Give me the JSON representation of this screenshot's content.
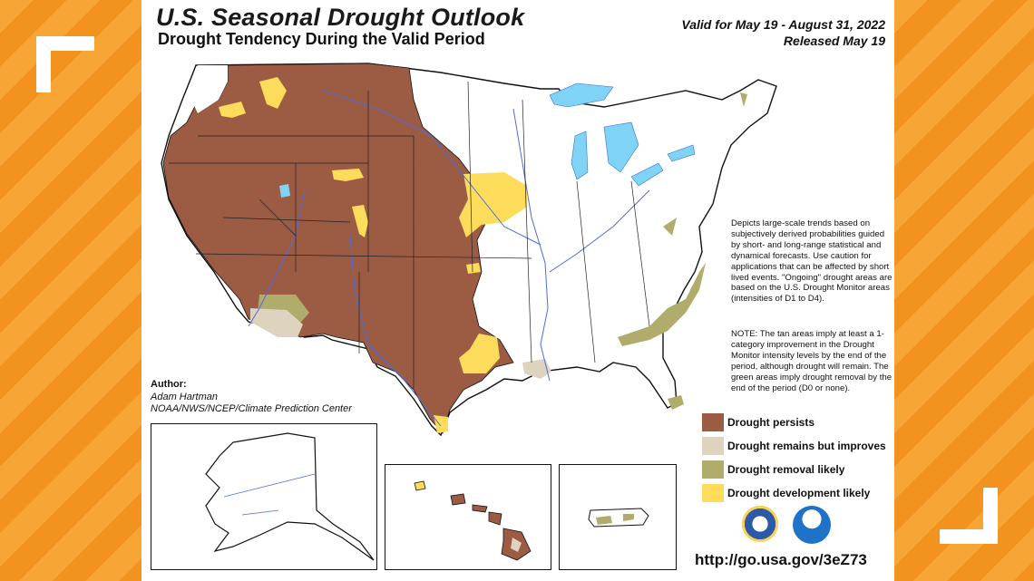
{
  "title": "U.S. Seasonal Drought Outlook",
  "subtitle": "Drought Tendency During the Valid Period",
  "valid_line": "Valid for May 19 - August 31, 2022",
  "released_line": "Released May 19",
  "description": "Depicts large-scale trends based on subjectively derived probabilities guided by short- and long-range statistical and dynamical forecasts. Use caution for applications that can be affected by short lived events. \"Ongoing\" drought areas are based on the U.S. Drought Monitor areas (intensities of D1 to D4).",
  "note": "NOTE: The tan areas imply at least a 1-category improvement in the Drought Monitor intensity levels by the end of the period, although drought will remain. The green areas imply drought removal by the end of the period (D0 or none).",
  "author": {
    "label": "Author:",
    "name": "Adam Hartman",
    "org": "NOAA/NWS/NCEP/Climate Prediction Center"
  },
  "legend": [
    {
      "label": "Drought persists",
      "color": "#9c5b43"
    },
    {
      "label": "Drought remains but improves",
      "color": "#ddd3bf"
    },
    {
      "label": "Drought removal likely",
      "color": "#b0ac6c"
    },
    {
      "label": "Drought development likely",
      "color": "#fddc5c"
    }
  ],
  "url": "http://go.usa.gov/3eZ73",
  "colors": {
    "persists": "#9c5b43",
    "improves": "#ddd3bf",
    "removal": "#b0ac6c",
    "development": "#fddc5c",
    "water": "#7fd3f5",
    "river": "#4a6ee0",
    "background_orange": "#f6a02c"
  },
  "icons": [
    "commerce-seal-icon",
    "noaa-logo-icon"
  ]
}
